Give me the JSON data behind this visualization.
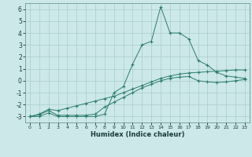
{
  "x": [
    0,
    1,
    2,
    3,
    4,
    5,
    6,
    7,
    8,
    9,
    10,
    11,
    12,
    13,
    14,
    15,
    16,
    17,
    18,
    19,
    20,
    21,
    22,
    23
  ],
  "line1": [
    -3.0,
    -3.0,
    -2.7,
    -3.0,
    -3.0,
    -3.0,
    -3.0,
    -3.0,
    -2.8,
    -1.0,
    -0.5,
    1.4,
    3.0,
    3.3,
    6.2,
    4.0,
    4.0,
    3.5,
    1.7,
    1.3,
    0.7,
    0.4,
    0.3,
    0.2
  ],
  "line2": [
    -3.0,
    -2.8,
    -2.4,
    -2.5,
    -2.3,
    -2.1,
    -1.9,
    -1.7,
    -1.5,
    -1.3,
    -1.0,
    -0.7,
    -0.4,
    -0.1,
    0.2,
    0.4,
    0.55,
    0.65,
    0.7,
    0.75,
    0.8,
    0.85,
    0.9,
    0.9
  ],
  "line3": [
    -3.0,
    -2.85,
    -2.5,
    -2.9,
    -2.9,
    -2.9,
    -2.9,
    -2.8,
    -2.2,
    -1.8,
    -1.4,
    -1.0,
    -0.6,
    -0.3,
    0.0,
    0.2,
    0.3,
    0.35,
    0.0,
    -0.1,
    -0.15,
    -0.1,
    0.0,
    0.1
  ],
  "line_color": "#2e7d6e",
  "bg_color": "#cce8e8",
  "grid_color": "#aacccc",
  "xlabel": "Humidex (Indice chaleur)",
  "ylim": [
    -3.5,
    6.5
  ],
  "xlim": [
    -0.5,
    23.5
  ],
  "yticks": [
    -3,
    -2,
    -1,
    0,
    1,
    2,
    3,
    4,
    5,
    6
  ],
  "xticks": [
    0,
    1,
    2,
    3,
    4,
    5,
    6,
    7,
    8,
    9,
    10,
    11,
    12,
    13,
    14,
    15,
    16,
    17,
    18,
    19,
    20,
    21,
    22,
    23
  ]
}
